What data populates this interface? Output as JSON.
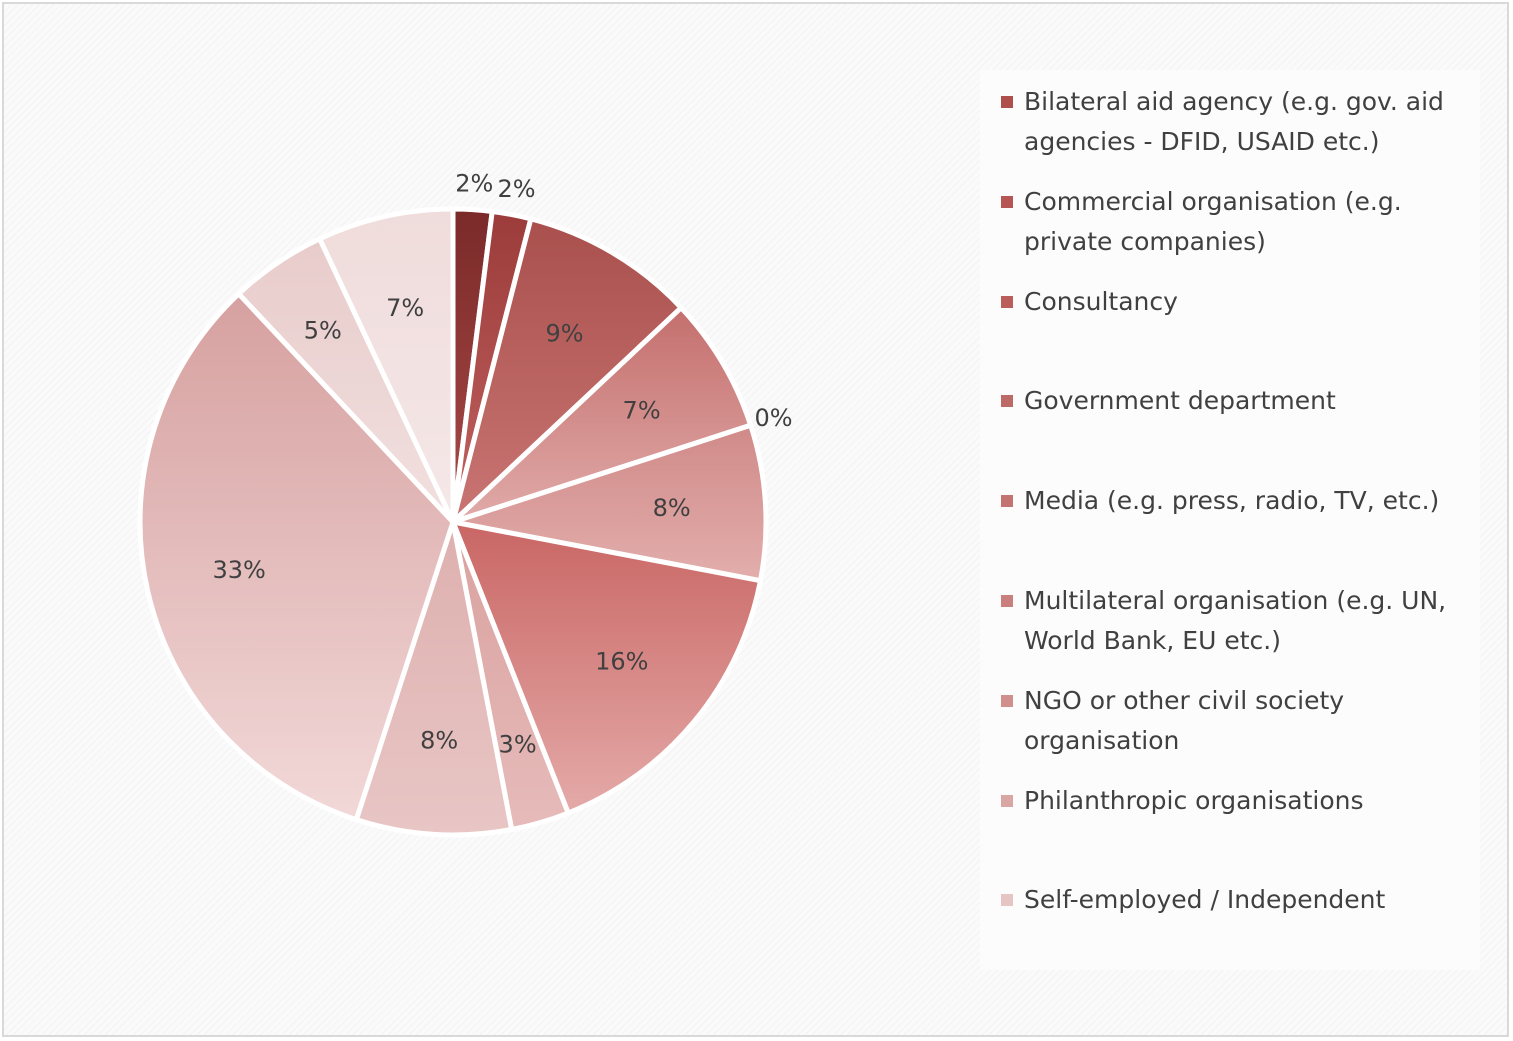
{
  "chart_data": {
    "type": "pie",
    "title": "",
    "categories": [
      "Bilateral aid agency (e.g. gov. aid agencies - DFID, USAID etc.)",
      "Commercial organisation (e.g. private companies)",
      "Consultancy",
      "Government department",
      "Media (e.g. press, radio, TV, etc.)",
      "Multilateral organisation (e.g. UN, World Bank, EU etc.)",
      "NGO or other civil society organisation",
      "Philanthropic organisations",
      "Self-employed / Independent",
      "",
      "",
      ""
    ],
    "values": [
      2,
      2,
      9,
      7,
      0,
      8,
      16,
      3,
      8,
      33,
      5,
      7
    ],
    "labels": [
      "2%",
      "2%",
      "9%",
      "7%",
      "0%",
      "8%",
      "16%",
      "3%",
      "8%",
      "33%",
      "5%",
      "7%"
    ],
    "colors": [
      "#7a2a29",
      "#9c3c3a",
      "#a9504d",
      "#c46f6d",
      "#c45350",
      "#d08a88",
      "#c96664",
      "#d9a19f",
      "#ddb0ae",
      "#d6a1a0",
      "#e8cccb",
      "#efdcdb"
    ],
    "gradient_light": [
      "#a94a48",
      "#c06260",
      "#c97573",
      "#e0aaa8",
      "#c0504d",
      "#e2aeac",
      "#e4aaa8",
      "#e6bbba",
      "#e8c6c5",
      "#f2d8d8",
      "#f1e0df",
      "#f5e8e8"
    ],
    "legend_position": "right",
    "legend": {
      "items": [
        {
          "label": "Bilateral aid agency (e.g. gov. aid agencies - DFID, USAID etc.)",
          "color": "#b04e4c"
        },
        {
          "label": "Commercial organisation (e.g. private companies)",
          "color": "#b65553"
        },
        {
          "label": "Consultancy",
          "color": "#bb5d5b"
        },
        {
          "label": "Government department",
          "color": "#bd6967"
        },
        {
          "label": "Media (e.g. press, radio, TV, etc.)",
          "color": "#c37472"
        },
        {
          "label": "Multilateral organisation (e.g. UN, World Bank, EU etc.)",
          "color": "#c87f7d"
        },
        {
          "label": "NGO or other civil society organisation",
          "color": "#d08f8d"
        },
        {
          "label": "Philanthropic organisations",
          "color": "#d9a6a4"
        },
        {
          "label": "Self-employed / Independent",
          "color": "#e6c5c4"
        }
      ]
    }
  }
}
